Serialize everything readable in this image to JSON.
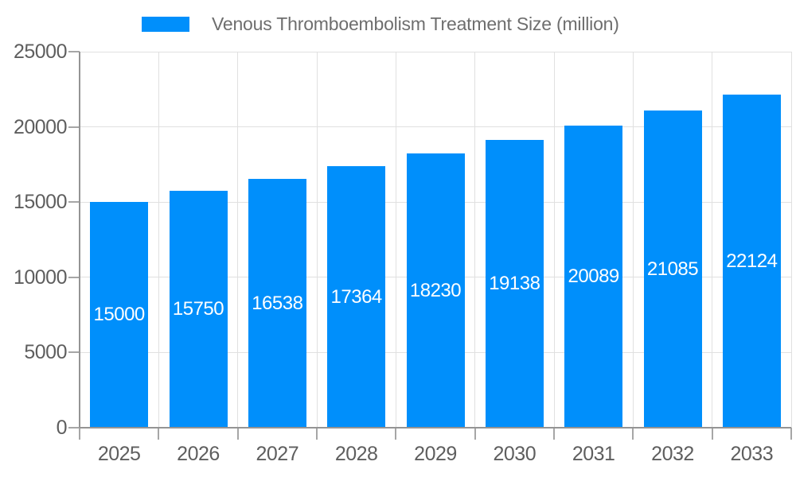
{
  "chart_data": {
    "type": "bar",
    "title": "Venous Thromboembolism Treatment Size (million)",
    "categories": [
      "2025",
      "2026",
      "2027",
      "2028",
      "2029",
      "2030",
      "2031",
      "2032",
      "2033"
    ],
    "values": [
      15000,
      15750,
      16538,
      17364,
      18230,
      19138,
      20089,
      21085,
      22124
    ],
    "value_labels": [
      "15000",
      "15750",
      "16538",
      "17364",
      "18230",
      "19138",
      "20089",
      "21085",
      "22124"
    ],
    "xlabel": "",
    "ylabel": "",
    "ylim": [
      0,
      25000
    ],
    "y_ticks": [
      0,
      5000,
      10000,
      15000,
      20000,
      25000
    ],
    "y_tick_labels": [
      "0",
      "5000",
      "10000",
      "15000",
      "20000",
      "25000"
    ],
    "grid": true,
    "legend_position": "top"
  },
  "legend": {
    "label": "Venous Thromboembolism Treatment Size (million)"
  },
  "colors": {
    "bar": "#008FFB",
    "grid": "#e0e0e0",
    "axis": "#949494",
    "tickmark": "#a6a6a6",
    "tick_label": "#5e5e5e",
    "title": "#6e6e6e",
    "value_label": "#ffffff"
  }
}
